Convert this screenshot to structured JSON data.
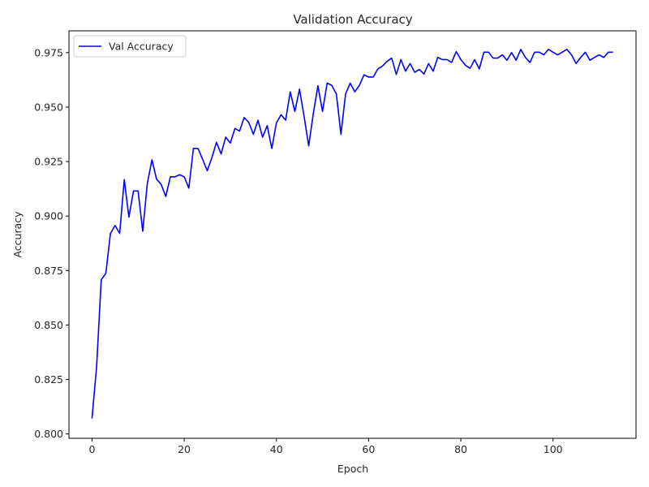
{
  "chart_data": {
    "type": "line",
    "title": "Validation Accuracy",
    "xlabel": "Epoch",
    "ylabel": "Accuracy",
    "xlim": [
      -5,
      118
    ],
    "ylim": [
      0.798,
      0.985
    ],
    "xticks": [
      0,
      20,
      40,
      60,
      80,
      100
    ],
    "yticks": [
      0.8,
      0.825,
      0.85,
      0.875,
      0.9,
      0.925,
      0.95,
      0.975
    ],
    "ytick_labels": [
      "0.800",
      "0.825",
      "0.850",
      "0.875",
      "0.900",
      "0.925",
      "0.950",
      "0.975"
    ],
    "grid": false,
    "legend_position": "top-left",
    "series": [
      {
        "name": "Val Accuracy",
        "color": "#0000ff",
        "x": [
          0,
          1,
          2,
          3,
          4,
          5,
          6,
          7,
          8,
          9,
          10,
          11,
          12,
          13,
          14,
          15,
          16,
          17,
          18,
          19,
          20,
          21,
          22,
          23,
          24,
          25,
          26,
          27,
          28,
          29,
          30,
          31,
          32,
          33,
          34,
          35,
          36,
          37,
          38,
          39,
          40,
          41,
          42,
          43,
          44,
          45,
          46,
          47,
          48,
          49,
          50,
          51,
          52,
          53,
          54,
          55,
          56,
          57,
          58,
          59,
          60,
          61,
          62,
          63,
          64,
          65,
          66,
          67,
          68,
          69,
          70,
          71,
          72,
          73,
          74,
          75,
          76,
          77,
          78,
          79,
          80,
          81,
          82,
          83,
          84,
          85,
          86,
          87,
          88,
          89,
          90,
          91,
          92,
          93,
          94,
          95,
          96,
          97,
          98,
          99,
          100,
          101,
          102,
          103,
          104,
          105,
          106,
          107,
          108,
          109,
          110,
          111,
          112,
          113
        ],
        "y": [
          0.8071,
          0.831,
          0.8708,
          0.8737,
          0.892,
          0.8957,
          0.892,
          0.9167,
          0.8995,
          0.9115,
          0.9115,
          0.893,
          0.915,
          0.9258,
          0.917,
          0.9145,
          0.909,
          0.918,
          0.918,
          0.919,
          0.918,
          0.9128,
          0.931,
          0.931,
          0.926,
          0.9208,
          0.9268,
          0.9338,
          0.9285,
          0.9362,
          0.9335,
          0.9402,
          0.939,
          0.9452,
          0.943,
          0.9375,
          0.944,
          0.9362,
          0.9415,
          0.931,
          0.9428,
          0.9465,
          0.944,
          0.957,
          0.948,
          0.9582,
          0.9458,
          0.9322,
          0.947,
          0.9598,
          0.948,
          0.961,
          0.96,
          0.956,
          0.9375,
          0.956,
          0.961,
          0.957,
          0.96,
          0.9648,
          0.9638,
          0.9638,
          0.9675,
          0.9688,
          0.971,
          0.9725,
          0.965,
          0.9718,
          0.9665,
          0.97,
          0.966,
          0.9673,
          0.9652,
          0.97,
          0.9665,
          0.9728,
          0.9718,
          0.9718,
          0.9705,
          0.9755,
          0.9718,
          0.9692,
          0.9678,
          0.9718,
          0.9675,
          0.9752,
          0.9752,
          0.9725,
          0.9725,
          0.974,
          0.9715,
          0.975,
          0.9715,
          0.9765,
          0.9728,
          0.9705,
          0.9752,
          0.9752,
          0.974,
          0.9765,
          0.9752,
          0.974,
          0.9752,
          0.9765,
          0.974,
          0.97,
          0.9728,
          0.9752,
          0.9715,
          0.9728,
          0.974,
          0.9728,
          0.9752,
          0.9752
        ]
      }
    ]
  }
}
